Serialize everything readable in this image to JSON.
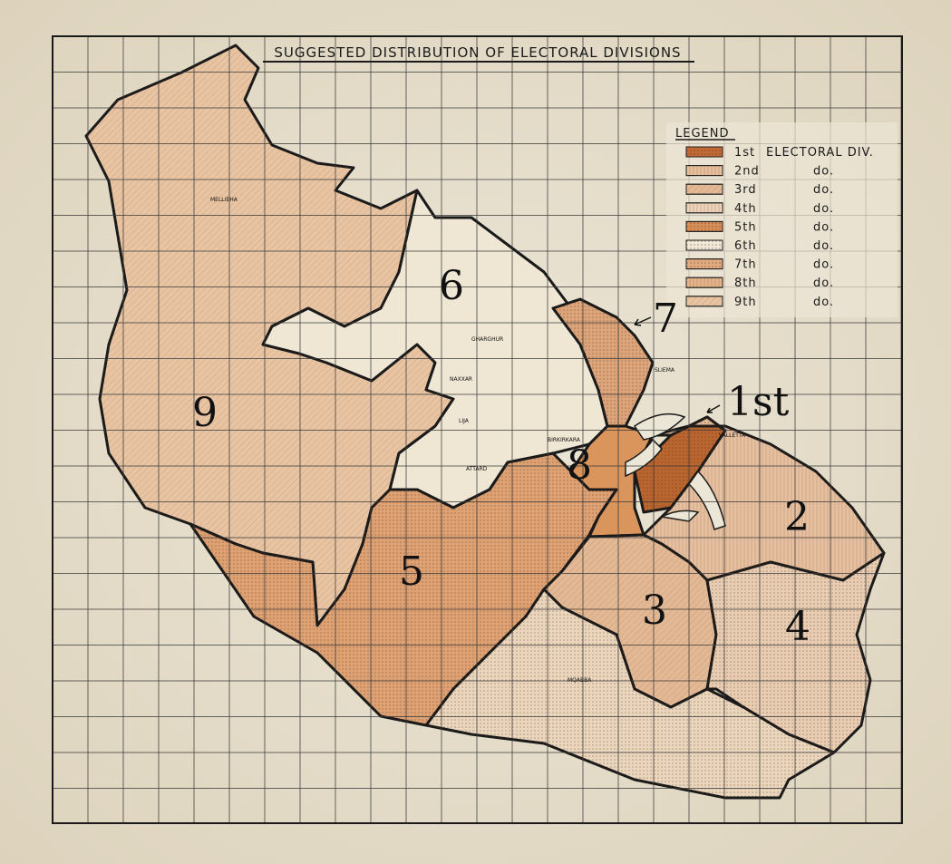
{
  "title": "SUGGESTED DISTRIBUTION OF ELECTORAL DIVISIONS",
  "legend": {
    "heading": "LEGEND",
    "items": [
      {
        "ordinal": "1st",
        "text": "ELECTORAL DIV.",
        "color": "#c26a36",
        "pattern": "dots"
      },
      {
        "ordinal": "2nd",
        "text": "do.",
        "color": "#e6bf9c",
        "pattern": "vertical"
      },
      {
        "ordinal": "3rd",
        "text": "do.",
        "color": "#e3b895",
        "pattern": "diagonal"
      },
      {
        "ordinal": "4th",
        "text": "do.",
        "color": "#ecd4bb",
        "pattern": "grid"
      },
      {
        "ordinal": "5th",
        "text": "do.",
        "color": "#d68d58",
        "pattern": "dots"
      },
      {
        "ordinal": "6th",
        "text": "do.",
        "color": "#f0e8d8",
        "pattern": "stipple"
      },
      {
        "ordinal": "7th",
        "text": "do.",
        "color": "#e0ab80",
        "pattern": "circles"
      },
      {
        "ordinal": "8th",
        "text": "do.",
        "color": "#e4b48a",
        "pattern": "horizontal"
      },
      {
        "ordinal": "9th",
        "text": "do.",
        "color": "#e8c4a2",
        "pattern": "diagonal"
      }
    ]
  },
  "handwritten_labels": {
    "d1": "1st",
    "d2": "2",
    "d3": "3",
    "d4": "4",
    "d5": "5",
    "d6": "6",
    "d7": "7",
    "d8": "8",
    "d9": "9"
  },
  "places": {
    "valletta": "VALLETTA",
    "sliema": "SLIEMA",
    "naxxar": "NAXXAR",
    "gharghur": "GHARGHUR",
    "lija": "LIJA",
    "birkirkara": "BIRKIRKARA",
    "attard": "ATTARD",
    "mellieha": "MELLIEHA",
    "mqabba": "MQABBA"
  },
  "colors": {
    "paper": "#e9e3d2",
    "border": "#1a1a1a"
  }
}
